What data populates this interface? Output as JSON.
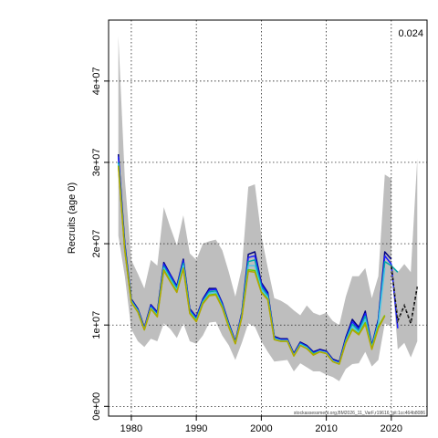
{
  "chart_data": {
    "type": "line",
    "ylabel": "Recruits (age 0)",
    "corner_value": "0.024",
    "footer_note": "stockassessment.org,BM2026_11_VarF,r19616_git:1cc464b8086",
    "xlim": [
      1976.5,
      2025.5
    ],
    "ylim": [
      -1200000,
      47500000
    ],
    "x_ticks": [
      1980,
      1990,
      2000,
      2010,
      2020
    ],
    "x_tick_labels": [
      "1980",
      "1990",
      "2000",
      "2010",
      "2020"
    ],
    "y_ticks": [
      0,
      10000000,
      20000000,
      30000000,
      40000000
    ],
    "y_tick_labels": [
      "0e+00",
      "1e+07",
      "2e+07",
      "3e+07",
      "4e+07"
    ],
    "grid": true,
    "confidence_band": {
      "x": [
        1978,
        1979,
        1980,
        1981,
        1982,
        1983,
        1984,
        1985,
        1986,
        1987,
        1988,
        1989,
        1990,
        1991,
        1992,
        1993,
        1994,
        1995,
        1996,
        1997,
        1998,
        1999,
        2000,
        2001,
        2002,
        2003,
        2004,
        2005,
        2006,
        2007,
        2008,
        2009,
        2010,
        2011,
        2012,
        2013,
        2014,
        2015,
        2016,
        2017,
        2018,
        2019,
        2020
      ],
      "lower": [
        21000000,
        16000000,
        9500000,
        8000000,
        7300000,
        8300000,
        8000000,
        10200000,
        9500000,
        8400000,
        10200000,
        8000000,
        7700000,
        8700000,
        10300000,
        10400000,
        8700000,
        7500000,
        5700000,
        7800000,
        10200000,
        9800000,
        8000000,
        6700000,
        5500000,
        5600000,
        5700000,
        4300000,
        5300000,
        4800000,
        4300000,
        4300000,
        3900000,
        3600000,
        3100000,
        4600000,
        5200000,
        5300000,
        6700000,
        4900000,
        5700000,
        10200000,
        9800000
      ],
      "upper": [
        45500000,
        28000000,
        18000000,
        16300000,
        14500000,
        18000000,
        17300000,
        24500000,
        22000000,
        19800000,
        23500000,
        18800000,
        18000000,
        20000000,
        20300000,
        20500000,
        19200000,
        16500000,
        13500000,
        17000000,
        27000000,
        27300000,
        21000000,
        17000000,
        13300000,
        13000000,
        12500000,
        11800000,
        11200000,
        12400000,
        11500000,
        11200000,
        11500000,
        10500000,
        10000000,
        13500000,
        16000000,
        16000000,
        17000000,
        13300000,
        16000000,
        28500000,
        28000000
      ]
    },
    "series": [
      {
        "color": "#000080",
        "x": [
          1978,
          1979,
          1980,
          1981,
          1982,
          1983,
          1984,
          1985,
          1986,
          1987,
          1988,
          1989,
          1990,
          1991,
          1992,
          1993,
          1994,
          1995,
          1996,
          1997,
          1998,
          1999,
          2000,
          2001,
          2002,
          2003,
          2004,
          2005,
          2006,
          2007,
          2008,
          2009,
          2010,
          2011,
          2012,
          2013,
          2014,
          2015,
          2016,
          2017,
          2018,
          2019,
          2020
        ],
        "values": [
          31000000,
          20000000,
          13200000,
          12000000,
          9700000,
          12500000,
          11600000,
          17700000,
          16200000,
          14800000,
          18100000,
          12000000,
          11000000,
          13200000,
          14500000,
          14500000,
          12700000,
          10200000,
          8000000,
          11500000,
          18700000,
          19000000,
          15200000,
          14000000,
          8600000,
          8300000,
          8300000,
          6500000,
          7900000,
          7500000,
          6700000,
          7000000,
          6800000,
          5800000,
          5500000,
          8500000,
          10700000,
          9700000,
          11700000,
          7500000,
          10700000,
          19000000,
          18100000
        ]
      },
      {
        "color": "#1a1aff",
        "x": [
          1978,
          1979,
          1980,
          1981,
          1982,
          1983,
          1984,
          1985,
          1986,
          1987,
          1988,
          1989,
          1990,
          1991,
          1992,
          1993,
          1994,
          1995,
          1996,
          1997,
          1998,
          1999,
          2000,
          2001,
          2002,
          2003,
          2004,
          2005,
          2006,
          2007,
          2008,
          2009,
          2010,
          2011,
          2012,
          2013,
          2014,
          2015,
          2016,
          2017,
          2018,
          2019,
          2020,
          2021
        ],
        "values": [
          30700000,
          19800000,
          13100000,
          11900000,
          9600000,
          12400000,
          11500000,
          17500000,
          16100000,
          14700000,
          17900000,
          11900000,
          10900000,
          13100000,
          14300000,
          14400000,
          12600000,
          10100000,
          7900000,
          11400000,
          18300000,
          18500000,
          15000000,
          13800000,
          8500000,
          8200000,
          8200000,
          6400000,
          7800000,
          7400000,
          6600000,
          6900000,
          6700000,
          5700000,
          5400000,
          8300000,
          10400000,
          9500000,
          11400000,
          7400000,
          10500000,
          18500000,
          17500000,
          9600000
        ]
      },
      {
        "color": "#00aaaa",
        "x": [
          1978,
          1979,
          1980,
          1981,
          1982,
          1983,
          1984,
          1985,
          1986,
          1987,
          1988,
          1989,
          1990,
          1991,
          1992,
          1993,
          1994,
          1995,
          1996,
          1997,
          1998,
          1999,
          2000,
          2001,
          2002,
          2003,
          2004,
          2005,
          2006,
          2007,
          2008,
          2009,
          2010,
          2011,
          2012,
          2013,
          2014,
          2015,
          2016,
          2017,
          2018,
          2019,
          2020,
          2021
        ],
        "values": [
          30000000,
          19500000,
          13000000,
          11800000,
          9500000,
          12200000,
          11300000,
          17200000,
          15800000,
          14500000,
          17600000,
          11700000,
          10700000,
          12900000,
          14100000,
          14200000,
          12400000,
          10000000,
          7800000,
          11200000,
          17800000,
          18000000,
          14700000,
          13600000,
          8400000,
          8100000,
          8100000,
          6300000,
          7700000,
          7300000,
          6500000,
          6800000,
          6600000,
          5600000,
          5300000,
          8100000,
          10100000,
          9300000,
          11100000,
          7300000,
          10300000,
          17800000,
          17300000,
          16500000
        ]
      },
      {
        "color": "#4dc3e6",
        "x": [
          1978,
          1979,
          1980,
          1981,
          1982,
          1983,
          1984,
          1985,
          1986,
          1987,
          1988,
          1989,
          1990,
          1991,
          1992,
          1993,
          1994,
          1995,
          1996,
          1997,
          1998,
          1999,
          2000,
          2001,
          2002,
          2003,
          2004,
          2005,
          2006,
          2007,
          2008,
          2009,
          2010,
          2011,
          2012,
          2013,
          2014,
          2015,
          2016,
          2017,
          2018,
          2019
        ],
        "values": [
          29800000,
          19300000,
          12900000,
          11700000,
          9500000,
          12100000,
          11200000,
          17000000,
          15600000,
          14300000,
          17300000,
          11600000,
          10600000,
          12800000,
          13900000,
          14000000,
          12300000,
          9900000,
          7800000,
          11100000,
          17300000,
          17300000,
          14400000,
          13400000,
          8300000,
          8100000,
          8100000,
          6300000,
          7600000,
          7200000,
          6400000,
          6800000,
          6600000,
          5600000,
          5300000,
          8000000,
          9800000,
          9100000,
          10700000,
          7200000,
          10100000,
          17000000
        ]
      },
      {
        "color": "#66cc00",
        "x": [
          1978,
          1979,
          1980,
          1981,
          1982,
          1983,
          1984,
          1985,
          1986,
          1987,
          1988,
          1989,
          1990,
          1991,
          1992,
          1993,
          1994,
          1995,
          1996,
          1997,
          1998,
          1999,
          2000,
          2001,
          2002,
          2003,
          2004,
          2005,
          2006,
          2007,
          2008,
          2009,
          2010,
          2011,
          2012,
          2013,
          2014,
          2015,
          2016,
          2017,
          2018,
          2019
        ],
        "values": [
          29600000,
          19200000,
          12800000,
          11600000,
          9400000,
          12000000,
          11100000,
          16800000,
          15400000,
          14100000,
          17000000,
          11500000,
          10500000,
          12700000,
          13700000,
          13800000,
          12200000,
          9800000,
          7700000,
          11000000,
          16800000,
          16700000,
          14100000,
          13200000,
          8200000,
          8000000,
          8000000,
          6200000,
          7500000,
          7100000,
          6400000,
          6700000,
          6500000,
          5500000,
          5200000,
          7900000,
          9500000,
          8900000,
          10300000,
          7100000,
          9800000,
          11200000
        ]
      },
      {
        "color": "#b3a600",
        "x": [
          1978,
          1979,
          1980,
          1981,
          1982,
          1983,
          1984,
          1985,
          1986,
          1987,
          1988,
          1989,
          1990,
          1991,
          1992,
          1993,
          1994,
          1995,
          1996,
          1997,
          1998,
          1999,
          2000,
          2001,
          2002,
          2003,
          2004,
          2005,
          2006,
          2007,
          2008,
          2009,
          2010,
          2011,
          2012,
          2013,
          2014,
          2015,
          2016,
          2017,
          2018,
          2019
        ],
        "values": [
          29500000,
          19100000,
          12800000,
          11600000,
          9400000,
          12000000,
          11000000,
          16700000,
          15300000,
          14000000,
          16900000,
          11400000,
          10400000,
          12600000,
          13600000,
          13700000,
          12100000,
          9700000,
          7700000,
          10900000,
          16600000,
          16500000,
          14000000,
          13100000,
          8200000,
          8000000,
          8000000,
          6200000,
          7500000,
          7100000,
          6300000,
          6700000,
          6500000,
          5500000,
          5200000,
          7800000,
          9400000,
          8800000,
          10100000,
          7000000,
          9600000,
          11100000
        ]
      }
    ],
    "forecast": {
      "x": [
        2020,
        2021,
        2022,
        2023,
        2024
      ],
      "median": [
        17300000,
        10500000,
        12400000,
        10200000,
        14700000
      ],
      "lower": [
        17300000,
        7000000,
        7800000,
        6000000,
        8000000
      ],
      "upper": [
        17300000,
        16500000,
        17500000,
        16500000,
        30500000
      ]
    }
  }
}
